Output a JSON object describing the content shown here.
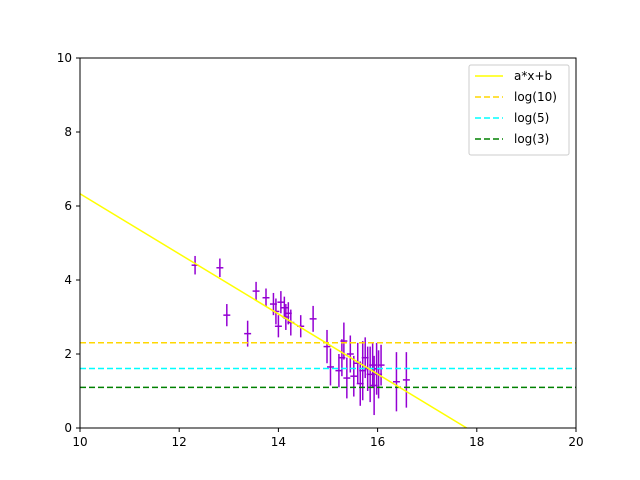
{
  "chart_data": {
    "type": "scatter",
    "title": "",
    "xlabel": "",
    "ylabel": "",
    "xlim": [
      10,
      20
    ],
    "ylim": [
      0,
      10
    ],
    "x_ticks": [
      "10",
      "12",
      "14",
      "16",
      "18",
      "20"
    ],
    "y_ticks": [
      "0",
      "2",
      "4",
      "6",
      "8",
      "10"
    ],
    "grid": false,
    "legend_position": "top-right",
    "colors": {
      "points": "#9400d3",
      "fit": "#ffff00",
      "log10": "#ffd700",
      "log5": "#00ffff",
      "log3": "#008000"
    },
    "fit_line": {
      "name": "a*x+b",
      "slope": -0.812,
      "intercept": 14.45
    },
    "hlines": [
      {
        "name": "log(10)",
        "y": 2.303
      },
      {
        "name": "log(5)",
        "y": 1.609
      },
      {
        "name": "log(3)",
        "y": 1.099
      }
    ],
    "points": [
      {
        "x": 12.32,
        "y": 4.4,
        "yerr": 0.25,
        "xerr": 0.07
      },
      {
        "x": 12.82,
        "y": 4.33,
        "yerr": 0.25,
        "xerr": 0.07
      },
      {
        "x": 12.96,
        "y": 3.05,
        "yerr": 0.3,
        "xerr": 0.07
      },
      {
        "x": 13.38,
        "y": 2.55,
        "yerr": 0.35,
        "xerr": 0.07
      },
      {
        "x": 13.55,
        "y": 3.7,
        "yerr": 0.25,
        "xerr": 0.07
      },
      {
        "x": 13.75,
        "y": 3.52,
        "yerr": 0.25,
        "xerr": 0.07
      },
      {
        "x": 13.9,
        "y": 3.35,
        "yerr": 0.3,
        "xerr": 0.07
      },
      {
        "x": 13.95,
        "y": 3.15,
        "yerr": 0.35,
        "xerr": 0.07
      },
      {
        "x": 14.0,
        "y": 2.75,
        "yerr": 0.3,
        "xerr": 0.07
      },
      {
        "x": 14.05,
        "y": 3.4,
        "yerr": 0.3,
        "xerr": 0.07
      },
      {
        "x": 14.12,
        "y": 3.25,
        "yerr": 0.3,
        "xerr": 0.07
      },
      {
        "x": 14.15,
        "y": 3.0,
        "yerr": 0.35,
        "xerr": 0.07
      },
      {
        "x": 14.2,
        "y": 3.1,
        "yerr": 0.3,
        "xerr": 0.07
      },
      {
        "x": 14.25,
        "y": 2.85,
        "yerr": 0.35,
        "xerr": 0.07
      },
      {
        "x": 14.45,
        "y": 2.75,
        "yerr": 0.3,
        "xerr": 0.07
      },
      {
        "x": 14.7,
        "y": 2.95,
        "yerr": 0.35,
        "xerr": 0.07
      },
      {
        "x": 14.98,
        "y": 2.2,
        "yerr": 0.45,
        "xerr": 0.07
      },
      {
        "x": 15.05,
        "y": 1.65,
        "yerr": 0.5,
        "xerr": 0.07
      },
      {
        "x": 15.22,
        "y": 1.55,
        "yerr": 0.45,
        "xerr": 0.07
      },
      {
        "x": 15.28,
        "y": 1.9,
        "yerr": 0.5,
        "xerr": 0.07
      },
      {
        "x": 15.32,
        "y": 2.35,
        "yerr": 0.5,
        "xerr": 0.07
      },
      {
        "x": 15.38,
        "y": 1.35,
        "yerr": 0.55,
        "xerr": 0.07
      },
      {
        "x": 15.45,
        "y": 2.0,
        "yerr": 0.5,
        "xerr": 0.07
      },
      {
        "x": 15.52,
        "y": 1.4,
        "yerr": 0.55,
        "xerr": 0.07
      },
      {
        "x": 15.6,
        "y": 1.75,
        "yerr": 0.55,
        "xerr": 0.07
      },
      {
        "x": 15.65,
        "y": 1.2,
        "yerr": 0.6,
        "xerr": 0.07
      },
      {
        "x": 15.7,
        "y": 1.55,
        "yerr": 0.8,
        "xerr": 0.07
      },
      {
        "x": 15.75,
        "y": 1.9,
        "yerr": 0.55,
        "xerr": 0.07
      },
      {
        "x": 15.8,
        "y": 1.6,
        "yerr": 0.6,
        "xerr": 0.07
      },
      {
        "x": 15.85,
        "y": 1.45,
        "yerr": 0.75,
        "xerr": 0.07
      },
      {
        "x": 15.9,
        "y": 1.7,
        "yerr": 0.6,
        "xerr": 0.07
      },
      {
        "x": 15.93,
        "y": 1.15,
        "yerr": 0.8,
        "xerr": 0.07
      },
      {
        "x": 15.98,
        "y": 1.6,
        "yerr": 0.7,
        "xerr": 0.07
      },
      {
        "x": 16.02,
        "y": 1.45,
        "yerr": 0.65,
        "xerr": 0.07
      },
      {
        "x": 16.07,
        "y": 1.7,
        "yerr": 0.55,
        "xerr": 0.07
      },
      {
        "x": 16.38,
        "y": 1.25,
        "yerr": 0.8,
        "xerr": 0.07
      },
      {
        "x": 16.58,
        "y": 1.3,
        "yerr": 0.75,
        "xerr": 0.07
      }
    ]
  }
}
